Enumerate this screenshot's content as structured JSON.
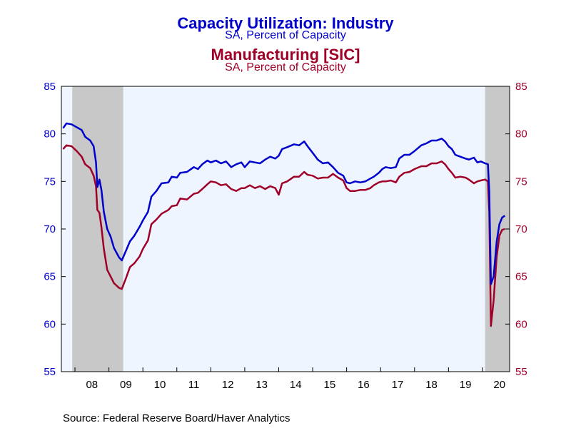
{
  "chart_data": {
    "type": "line",
    "title": "Capacity Utilization: Industry",
    "subtitle": "SA, Percent of Capacity",
    "title2": "Manufacturing [SIC]",
    "subtitle2": "SA, Percent of Capacity",
    "source": "Source:  Federal Reserve Board/Haver Analytics",
    "ylim": [
      55,
      85
    ],
    "yticks": [
      "55",
      "60",
      "65",
      "70",
      "75",
      "80",
      "85"
    ],
    "xlim": [
      2007.6,
      2020.8
    ],
    "xticks": [
      {
        "label": "08",
        "x": 2008.5
      },
      {
        "label": "09",
        "x": 2009.5
      },
      {
        "label": "10",
        "x": 2010.5
      },
      {
        "label": "11",
        "x": 2011.5
      },
      {
        "label": "12",
        "x": 2012.5
      },
      {
        "label": "13",
        "x": 2013.5
      },
      {
        "label": "14",
        "x": 2014.5
      },
      {
        "label": "15",
        "x": 2015.5
      },
      {
        "label": "16",
        "x": 2016.5
      },
      {
        "label": "17",
        "x": 2017.5
      },
      {
        "label": "18",
        "x": 2018.5
      },
      {
        "label": "19",
        "x": 2019.5
      },
      {
        "label": "20",
        "x": 2020.5
      }
    ],
    "recessions": [
      [
        2007.92,
        2009.42
      ],
      [
        2020.08,
        2020.8
      ]
    ],
    "colors": {
      "industry": "#0000cc",
      "manufacturing": "#a00028",
      "recession": "#c8c8c8",
      "plot_bg": "#eef5fe"
    },
    "series": [
      {
        "name": "Capacity Utilization: Industry",
        "axis": "left",
        "points": [
          [
            2007.65,
            80.6
          ],
          [
            2007.75,
            81.1
          ],
          [
            2007.9,
            81.0
          ],
          [
            2008.05,
            80.7
          ],
          [
            2008.2,
            80.4
          ],
          [
            2008.3,
            79.7
          ],
          [
            2008.45,
            79.3
          ],
          [
            2008.55,
            78.7
          ],
          [
            2008.62,
            77.0
          ],
          [
            2008.66,
            74.4
          ],
          [
            2008.72,
            75.2
          ],
          [
            2008.78,
            74.1
          ],
          [
            2008.85,
            71.8
          ],
          [
            2008.95,
            70.0
          ],
          [
            2009.05,
            69.2
          ],
          [
            2009.15,
            68.0
          ],
          [
            2009.3,
            67.0
          ],
          [
            2009.38,
            66.7
          ],
          [
            2009.5,
            67.7
          ],
          [
            2009.62,
            68.7
          ],
          [
            2009.75,
            69.3
          ],
          [
            2009.9,
            70.2
          ],
          [
            2010.0,
            70.9
          ],
          [
            2010.15,
            71.8
          ],
          [
            2010.25,
            73.4
          ],
          [
            2010.4,
            74.0
          ],
          [
            2010.55,
            74.8
          ],
          [
            2010.75,
            74.9
          ],
          [
            2010.85,
            75.5
          ],
          [
            2011.0,
            75.4
          ],
          [
            2011.1,
            75.9
          ],
          [
            2011.3,
            76.0
          ],
          [
            2011.5,
            76.5
          ],
          [
            2011.62,
            76.3
          ],
          [
            2011.75,
            76.8
          ],
          [
            2011.9,
            77.2
          ],
          [
            2012.0,
            77.0
          ],
          [
            2012.15,
            77.2
          ],
          [
            2012.3,
            76.9
          ],
          [
            2012.45,
            77.1
          ],
          [
            2012.6,
            76.5
          ],
          [
            2012.75,
            76.8
          ],
          [
            2012.9,
            77.0
          ],
          [
            2013.0,
            76.5
          ],
          [
            2013.15,
            77.1
          ],
          [
            2013.3,
            77.0
          ],
          [
            2013.45,
            76.9
          ],
          [
            2013.6,
            77.3
          ],
          [
            2013.75,
            77.6
          ],
          [
            2013.9,
            77.4
          ],
          [
            2014.0,
            77.7
          ],
          [
            2014.1,
            78.4
          ],
          [
            2014.25,
            78.6
          ],
          [
            2014.45,
            78.9
          ],
          [
            2014.6,
            78.8
          ],
          [
            2014.75,
            79.2
          ],
          [
            2014.85,
            78.7
          ],
          [
            2015.0,
            78.0
          ],
          [
            2015.15,
            77.3
          ],
          [
            2015.3,
            76.9
          ],
          [
            2015.45,
            77.0
          ],
          [
            2015.6,
            76.5
          ],
          [
            2015.75,
            75.9
          ],
          [
            2015.9,
            75.6
          ],
          [
            2016.0,
            74.9
          ],
          [
            2016.1,
            74.8
          ],
          [
            2016.25,
            75.0
          ],
          [
            2016.4,
            74.9
          ],
          [
            2016.55,
            75.0
          ],
          [
            2016.7,
            75.3
          ],
          [
            2016.8,
            75.5
          ],
          [
            2016.95,
            75.9
          ],
          [
            2017.05,
            76.3
          ],
          [
            2017.15,
            76.5
          ],
          [
            2017.3,
            76.4
          ],
          [
            2017.45,
            76.5
          ],
          [
            2017.55,
            77.4
          ],
          [
            2017.7,
            77.8
          ],
          [
            2017.85,
            77.8
          ],
          [
            2018.0,
            78.2
          ],
          [
            2018.2,
            78.8
          ],
          [
            2018.35,
            79.0
          ],
          [
            2018.5,
            79.3
          ],
          [
            2018.65,
            79.3
          ],
          [
            2018.8,
            79.5
          ],
          [
            2018.9,
            79.2
          ],
          [
            2019.0,
            78.7
          ],
          [
            2019.1,
            78.4
          ],
          [
            2019.2,
            77.8
          ],
          [
            2019.35,
            77.6
          ],
          [
            2019.5,
            77.4
          ],
          [
            2019.6,
            77.3
          ],
          [
            2019.75,
            77.5
          ],
          [
            2019.85,
            77.0
          ],
          [
            2019.95,
            77.1
          ],
          [
            2020.08,
            76.9
          ],
          [
            2020.16,
            76.8
          ],
          [
            2020.2,
            73.9
          ],
          [
            2020.25,
            64.2
          ],
          [
            2020.33,
            65.0
          ],
          [
            2020.42,
            68.7
          ],
          [
            2020.5,
            70.5
          ],
          [
            2020.58,
            71.2
          ],
          [
            2020.66,
            71.4
          ]
        ]
      },
      {
        "name": "Manufacturing [SIC]",
        "axis": "right",
        "points": [
          [
            2007.65,
            78.4
          ],
          [
            2007.75,
            78.8
          ],
          [
            2007.9,
            78.7
          ],
          [
            2008.05,
            78.2
          ],
          [
            2008.2,
            77.6
          ],
          [
            2008.3,
            76.8
          ],
          [
            2008.45,
            76.4
          ],
          [
            2008.55,
            75.6
          ],
          [
            2008.62,
            74.5
          ],
          [
            2008.66,
            72.0
          ],
          [
            2008.72,
            71.7
          ],
          [
            2008.78,
            70.2
          ],
          [
            2008.85,
            67.9
          ],
          [
            2008.95,
            65.7
          ],
          [
            2009.05,
            65.0
          ],
          [
            2009.15,
            64.3
          ],
          [
            2009.3,
            63.8
          ],
          [
            2009.38,
            63.7
          ],
          [
            2009.5,
            64.8
          ],
          [
            2009.62,
            66.0
          ],
          [
            2009.75,
            66.4
          ],
          [
            2009.9,
            67.1
          ],
          [
            2010.0,
            67.9
          ],
          [
            2010.15,
            68.8
          ],
          [
            2010.25,
            70.5
          ],
          [
            2010.4,
            71.0
          ],
          [
            2010.55,
            71.6
          ],
          [
            2010.75,
            72.0
          ],
          [
            2010.85,
            72.4
          ],
          [
            2011.0,
            72.5
          ],
          [
            2011.1,
            73.2
          ],
          [
            2011.3,
            73.1
          ],
          [
            2011.5,
            73.7
          ],
          [
            2011.62,
            73.8
          ],
          [
            2011.75,
            74.2
          ],
          [
            2011.9,
            74.7
          ],
          [
            2012.0,
            75.0
          ],
          [
            2012.15,
            74.9
          ],
          [
            2012.3,
            74.6
          ],
          [
            2012.45,
            74.7
          ],
          [
            2012.6,
            74.2
          ],
          [
            2012.75,
            74.0
          ],
          [
            2012.9,
            74.3
          ],
          [
            2013.0,
            74.3
          ],
          [
            2013.15,
            74.6
          ],
          [
            2013.3,
            74.3
          ],
          [
            2013.45,
            74.5
          ],
          [
            2013.6,
            74.2
          ],
          [
            2013.75,
            74.5
          ],
          [
            2013.9,
            74.3
          ],
          [
            2014.0,
            73.6
          ],
          [
            2014.1,
            74.8
          ],
          [
            2014.25,
            75.0
          ],
          [
            2014.45,
            75.5
          ],
          [
            2014.6,
            75.5
          ],
          [
            2014.75,
            76.0
          ],
          [
            2014.85,
            75.7
          ],
          [
            2015.0,
            75.6
          ],
          [
            2015.15,
            75.3
          ],
          [
            2015.3,
            75.4
          ],
          [
            2015.45,
            75.4
          ],
          [
            2015.6,
            75.8
          ],
          [
            2015.75,
            75.4
          ],
          [
            2015.9,
            75.1
          ],
          [
            2016.0,
            74.3
          ],
          [
            2016.1,
            74.0
          ],
          [
            2016.25,
            74.0
          ],
          [
            2016.4,
            74.1
          ],
          [
            2016.55,
            74.1
          ],
          [
            2016.7,
            74.3
          ],
          [
            2016.8,
            74.6
          ],
          [
            2016.95,
            74.9
          ],
          [
            2017.05,
            75.0
          ],
          [
            2017.15,
            75.0
          ],
          [
            2017.3,
            75.1
          ],
          [
            2017.45,
            74.9
          ],
          [
            2017.55,
            75.5
          ],
          [
            2017.7,
            75.9
          ],
          [
            2017.85,
            76.0
          ],
          [
            2018.0,
            76.3
          ],
          [
            2018.2,
            76.6
          ],
          [
            2018.35,
            76.6
          ],
          [
            2018.5,
            76.9
          ],
          [
            2018.65,
            76.9
          ],
          [
            2018.8,
            77.1
          ],
          [
            2018.9,
            76.8
          ],
          [
            2019.0,
            76.3
          ],
          [
            2019.1,
            75.9
          ],
          [
            2019.2,
            75.4
          ],
          [
            2019.35,
            75.5
          ],
          [
            2019.5,
            75.4
          ],
          [
            2019.6,
            75.2
          ],
          [
            2019.75,
            74.8
          ],
          [
            2019.85,
            75.0
          ],
          [
            2019.95,
            75.1
          ],
          [
            2020.08,
            75.2
          ],
          [
            2020.16,
            75.0
          ],
          [
            2020.2,
            71.7
          ],
          [
            2020.25,
            59.8
          ],
          [
            2020.33,
            62.5
          ],
          [
            2020.42,
            67.1
          ],
          [
            2020.5,
            69.3
          ],
          [
            2020.58,
            69.9
          ],
          [
            2020.66,
            70.0
          ]
        ]
      }
    ]
  }
}
